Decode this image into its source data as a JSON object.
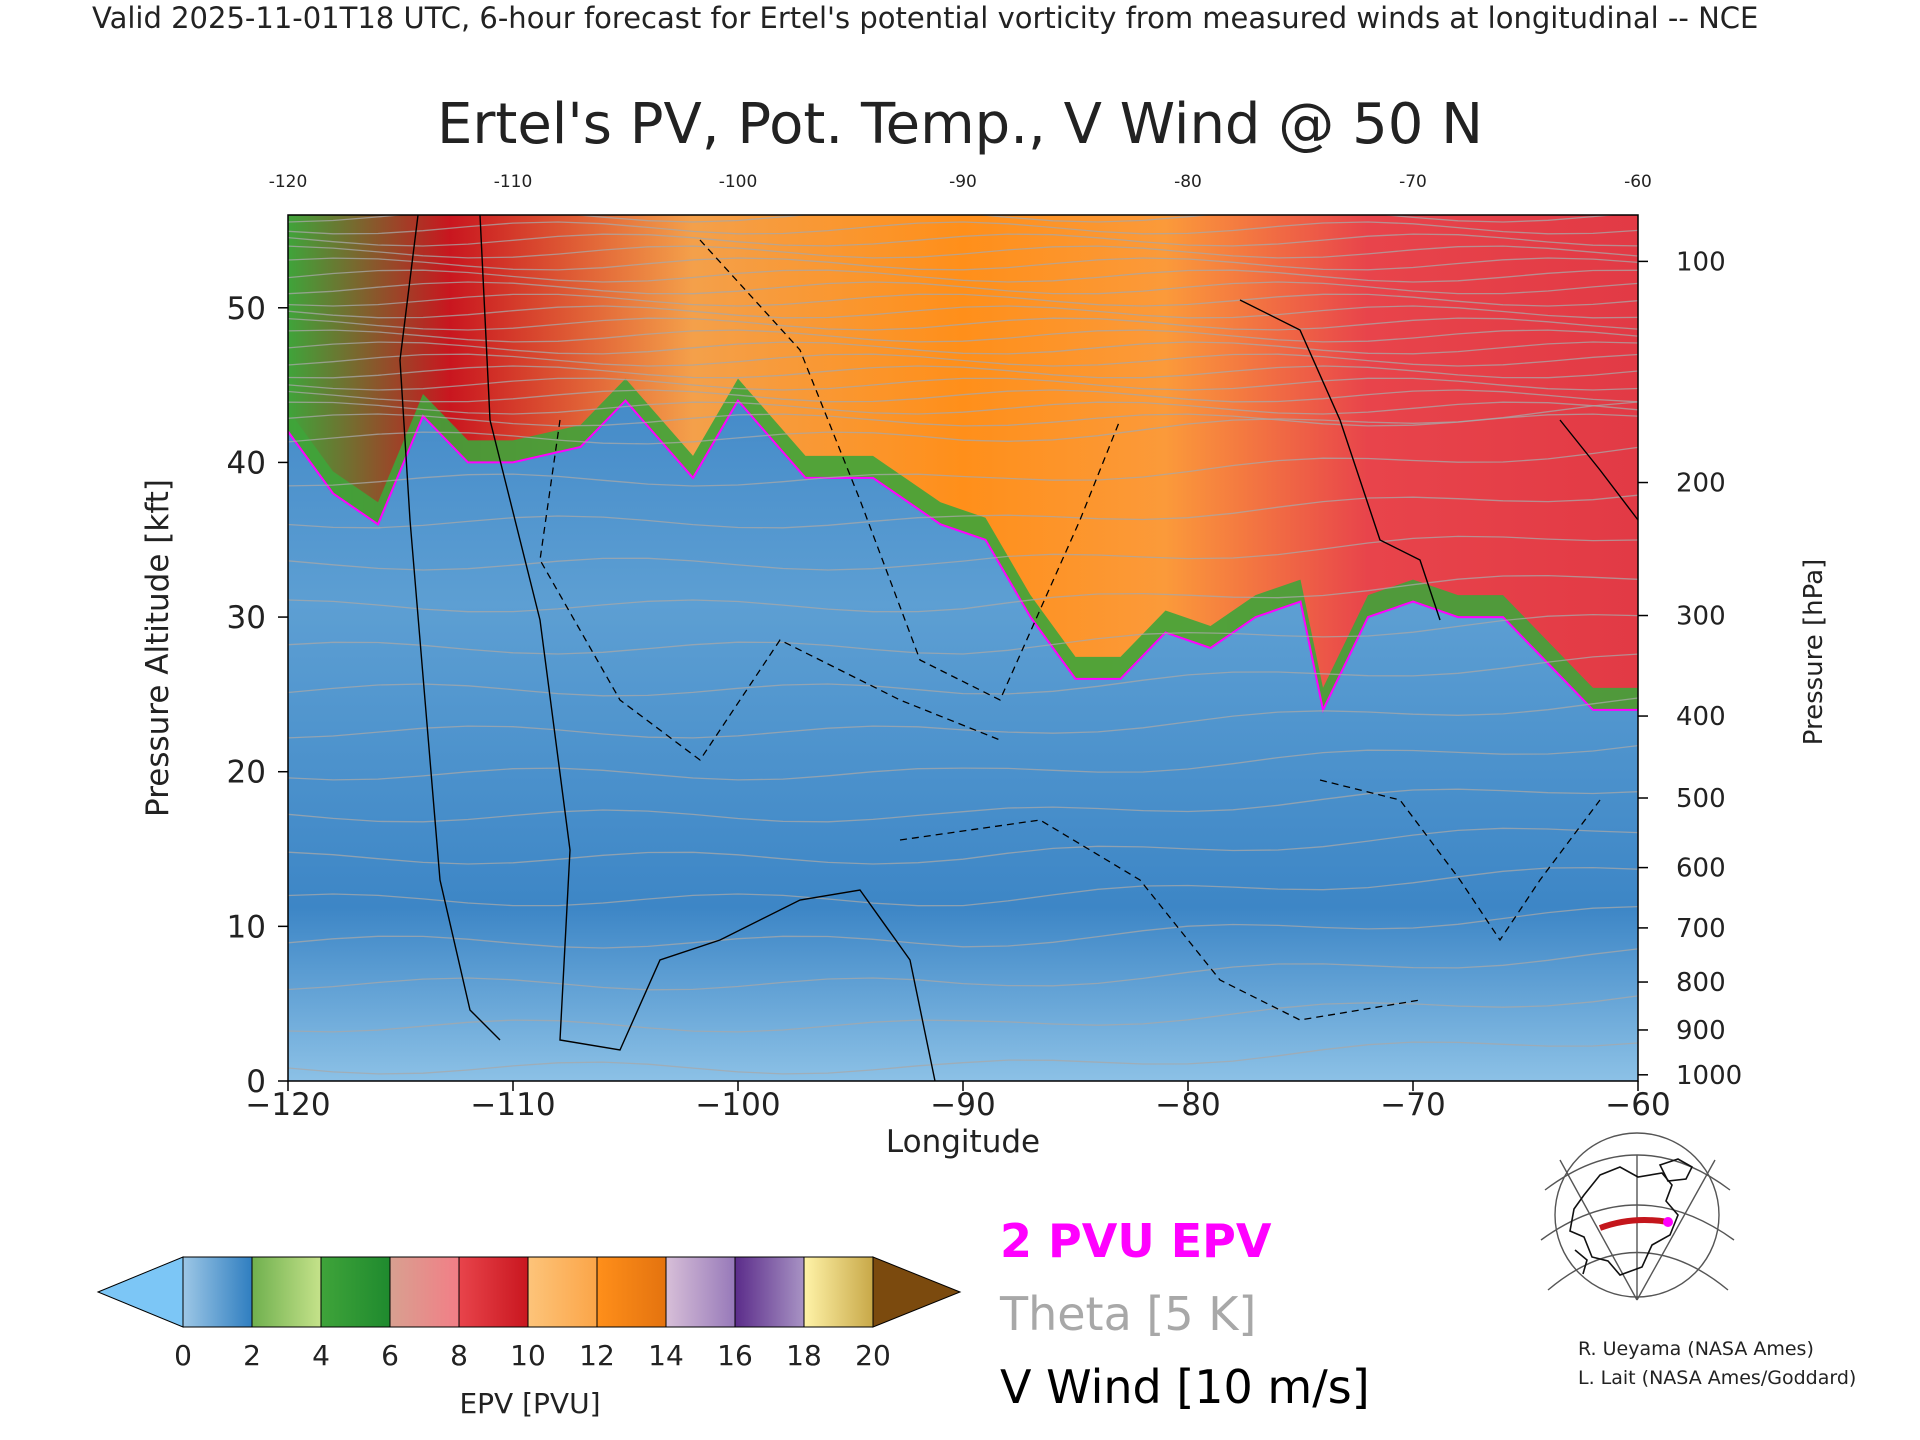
{
  "header": {
    "valid_line": "Valid 2025-11-01T18 UTC, 6-hour forecast for Ertel's potential vorticity from measured winds at longitudinal -- NCE"
  },
  "chart_data": {
    "type": "heatmap",
    "title": "Ertel's PV, Pot. Temp., V Wind @ 50 N",
    "xlabel": "Longitude",
    "ylabel_left": "Pressure Altitude [kft]",
    "ylabel_right": "Pressure [hPa]",
    "xlim": [
      -120,
      -60
    ],
    "ylim": [
      0,
      56
    ],
    "grid": false,
    "x_ticks": [
      -120,
      -110,
      -100,
      -90,
      -80,
      -70,
      -60
    ],
    "x_tick_labels": [
      "−120",
      "−110",
      "−100",
      "−90",
      "−80",
      "−70",
      "−60"
    ],
    "y_ticks": [
      0,
      10,
      20,
      30,
      40,
      50
    ],
    "pressure_ticks": [
      {
        "label": "100",
        "kft": 53.0
      },
      {
        "label": "200",
        "kft": 38.7
      },
      {
        "label": "300",
        "kft": 30.1
      },
      {
        "label": "400",
        "kft": 23.6
      },
      {
        "label": "500",
        "kft": 18.3
      },
      {
        "label": "600",
        "kft": 13.8
      },
      {
        "label": "700",
        "kft": 9.9
      },
      {
        "label": "800",
        "kft": 6.4
      },
      {
        "label": "900",
        "kft": 3.3
      },
      {
        "label": "1000",
        "kft": 0.4
      }
    ],
    "colorbar": {
      "label": "EPV [PVU]",
      "min": 0,
      "max": 20,
      "tick_labels": [
        "0",
        "2",
        "4",
        "6",
        "8",
        "10",
        "12",
        "14",
        "16",
        "18",
        "20"
      ],
      "under_color": "#7cc6f6",
      "over_color": "#7b4a0e",
      "bins": [
        {
          "from": 0,
          "to": 2,
          "colors": [
            "#9dc7e6",
            "#2f7ec0"
          ]
        },
        {
          "from": 2,
          "to": 4,
          "colors": [
            "#6fb04e",
            "#c5e28a"
          ]
        },
        {
          "from": 4,
          "to": 6,
          "colors": [
            "#3fa43a",
            "#1f8a2e"
          ]
        },
        {
          "from": 6,
          "to": 8,
          "colors": [
            "#d8a090",
            "#f27e86"
          ]
        },
        {
          "from": 8,
          "to": 10,
          "colors": [
            "#e8444b",
            "#c9161f"
          ]
        },
        {
          "from": 10,
          "to": 12,
          "colors": [
            "#fdc47a",
            "#fba548"
          ]
        },
        {
          "from": 12,
          "to": 14,
          "colors": [
            "#ff8f1a",
            "#e4730f"
          ]
        },
        {
          "from": 14,
          "to": 16,
          "colors": [
            "#d7bfd8",
            "#9779b9"
          ]
        },
        {
          "from": 16,
          "to": 18,
          "colors": [
            "#5b2c8a",
            "#a893c4"
          ]
        },
        {
          "from": 18,
          "to": 20,
          "colors": [
            "#fff3a8",
            "#c8a848"
          ]
        }
      ]
    },
    "tropopause_profile": [
      {
        "lon": -120,
        "kft": 42
      },
      {
        "lon": -118,
        "kft": 38
      },
      {
        "lon": -116,
        "kft": 36
      },
      {
        "lon": -114,
        "kft": 43
      },
      {
        "lon": -112,
        "kft": 40
      },
      {
        "lon": -110,
        "kft": 40
      },
      {
        "lon": -107,
        "kft": 41
      },
      {
        "lon": -105,
        "kft": 44
      },
      {
        "lon": -102,
        "kft": 39
      },
      {
        "lon": -100,
        "kft": 44
      },
      {
        "lon": -97,
        "kft": 39
      },
      {
        "lon": -94,
        "kft": 39
      },
      {
        "lon": -91,
        "kft": 36
      },
      {
        "lon": -89,
        "kft": 35
      },
      {
        "lon": -87,
        "kft": 30
      },
      {
        "lon": -85,
        "kft": 26
      },
      {
        "lon": -83,
        "kft": 26
      },
      {
        "lon": -81,
        "kft": 29
      },
      {
        "lon": -79,
        "kft": 28
      },
      {
        "lon": -77,
        "kft": 30
      },
      {
        "lon": -75,
        "kft": 31
      },
      {
        "lon": -74,
        "kft": 24
      },
      {
        "lon": -72,
        "kft": 30
      },
      {
        "lon": -70,
        "kft": 31
      },
      {
        "lon": -68,
        "kft": 30
      },
      {
        "lon": -66,
        "kft": 30
      },
      {
        "lon": -64,
        "kft": 27
      },
      {
        "lon": -62,
        "kft": 24
      },
      {
        "lon": -60,
        "kft": 24
      }
    ],
    "legend": {
      "epv_line": "2 PVU EPV",
      "theta_line": "Theta [5 K]",
      "wind_line": "V Wind [10 m/s]"
    },
    "colors": {
      "epv_line": "#ff00ff",
      "theta_line": "#a8a8a8",
      "wind_line": "#000000"
    },
    "inset_map": {
      "icon": "globe-map-icon",
      "track_color": "#c4161c",
      "point_color": "#ff00ff"
    }
  },
  "credits": [
    "R. Ueyama (NASA Ames)",
    "L. Lait (NASA Ames/Goddard)"
  ]
}
